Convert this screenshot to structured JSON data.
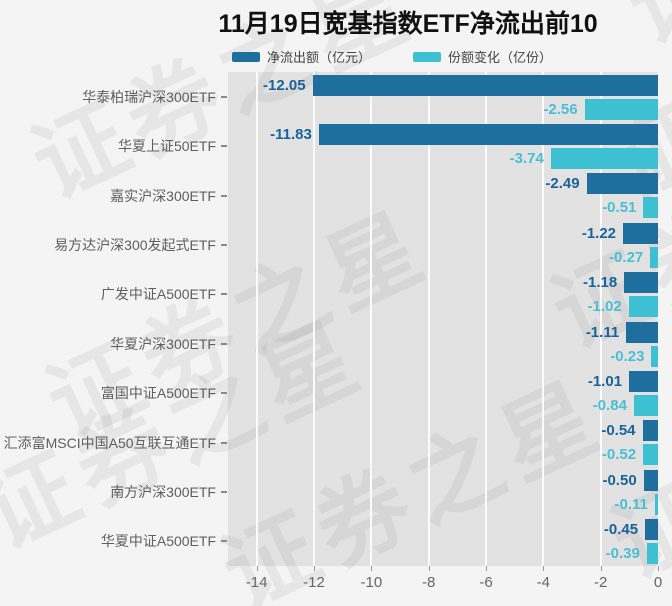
{
  "title": "11月19日宽基指数ETF净流出前10",
  "watermark": "证券之星",
  "colors": {
    "outflow_bar": "#1f6f9e",
    "share_bar": "#3ec0d3",
    "outflow_label": "#19639a",
    "share_label": "#4abed4",
    "plot_background": "#e2e2e2",
    "page_background": "#f4f4f4",
    "gridline": "#fbfbfb"
  },
  "legend": {
    "items": [
      {
        "label": "净流出额（亿元）",
        "color": "#1f6f9e"
      },
      {
        "label": "份额变化（亿份）",
        "color": "#3ec0d3"
      }
    ]
  },
  "chart_data": {
    "type": "bar",
    "orientation": "horizontal",
    "title": "11月19日宽基指数ETF净流出前10",
    "categories": [
      "华泰柏瑞沪深300ETF",
      "华夏上证50ETF",
      "嘉实沪深300ETF",
      "易方达沪深300发起式ETF",
      "广发中证A500ETF",
      "华夏沪深300ETF",
      "富国中证A500ETF",
      "汇添富MSCI中国A50互联互通ETF",
      "南方沪深300ETF",
      "华夏中证A500ETF"
    ],
    "series": [
      {
        "name": "净流出额（亿元）",
        "color": "#1f6f9e",
        "label_color": "#19639a",
        "values": [
          -12.05,
          -11.83,
          -2.49,
          -1.22,
          -1.18,
          -1.11,
          -1.01,
          -0.54,
          -0.5,
          -0.45
        ]
      },
      {
        "name": "份额变化（亿份）",
        "color": "#3ec0d3",
        "label_color": "#4abed4",
        "values": [
          -2.56,
          -3.74,
          -0.51,
          -0.27,
          -1.02,
          -0.23,
          -0.84,
          -0.52,
          -0.11,
          -0.39
        ]
      }
    ],
    "xlim": [
      -15,
      0
    ],
    "x_ticks": [
      -14,
      -12,
      -10,
      -8,
      -6,
      -4,
      -2,
      0
    ],
    "grid": true,
    "legend_position": "top"
  }
}
